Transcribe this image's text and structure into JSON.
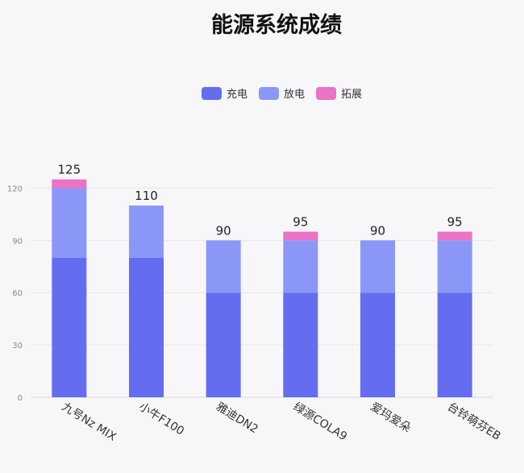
{
  "chart_data": {
    "type": "bar",
    "stacked": true,
    "title": "能源系统成绩",
    "xlabel": "",
    "ylabel": "",
    "ylim": [
      0,
      120
    ],
    "yticks": [
      0,
      30,
      60,
      90,
      120
    ],
    "grid": true,
    "legend": "top-center",
    "categories": [
      "九号Nz MIX",
      "小牛F100",
      "雅迪DN2",
      "绿源COLA9",
      "爱玛爱朵",
      "台铃萌芬EB"
    ],
    "series": [
      {
        "name": "充电",
        "color": "#646cf0",
        "values": [
          80,
          80,
          60,
          60,
          60,
          60
        ]
      },
      {
        "name": "放电",
        "color": "#8b97f7",
        "values": [
          40,
          30,
          30,
          30,
          30,
          30
        ]
      },
      {
        "name": "拓展",
        "color": "#ea73c6",
        "values": [
          5,
          0,
          0,
          5,
          0,
          5
        ]
      }
    ],
    "totals": [
      125,
      110,
      90,
      95,
      90,
      95
    ]
  }
}
